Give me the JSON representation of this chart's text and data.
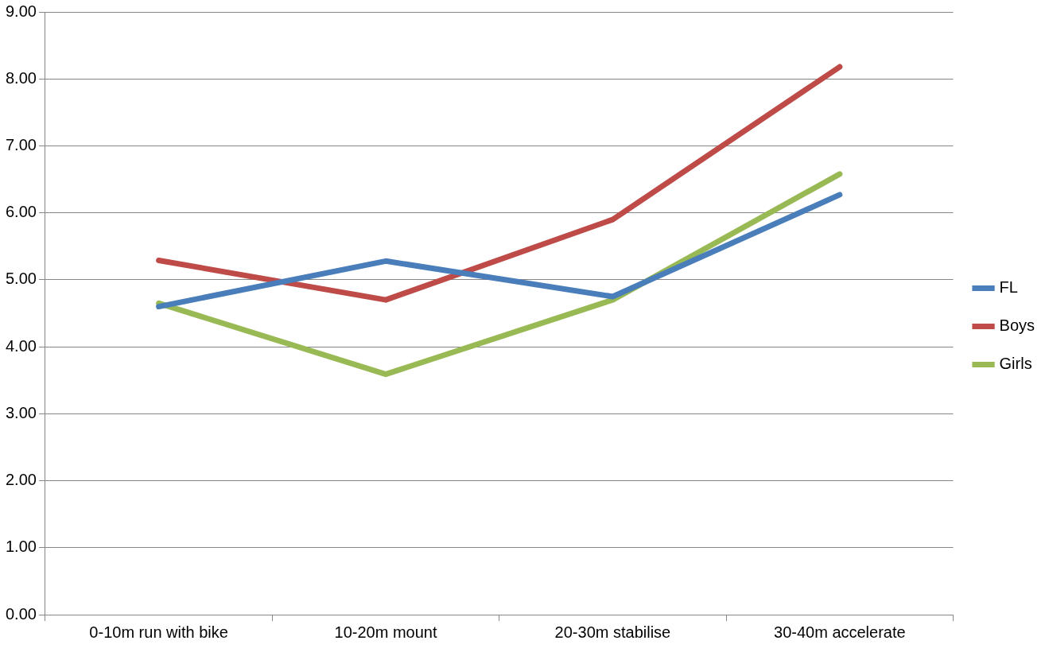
{
  "chart_data": {
    "type": "line",
    "categories": [
      "0-10m run with bike",
      "10-20m mount",
      "20-30m stabilise",
      "30-40m accelerate"
    ],
    "series": [
      {
        "name": "FL",
        "color": "#4a7ebb",
        "values": [
          4.6,
          5.28,
          4.75,
          6.27
        ]
      },
      {
        "name": "Boys",
        "color": "#be4b48",
        "values": [
          5.29,
          4.7,
          5.9,
          8.18
        ]
      },
      {
        "name": "Girls",
        "color": "#98b954",
        "values": [
          4.65,
          3.59,
          4.7,
          6.58
        ]
      }
    ],
    "ylim": [
      0,
      9
    ],
    "yticks": [
      {
        "value": 0,
        "label": "0.00"
      },
      {
        "value": 1,
        "label": "1.00"
      },
      {
        "value": 2,
        "label": "2.00"
      },
      {
        "value": 3,
        "label": "3.00"
      },
      {
        "value": 4,
        "label": "4.00"
      },
      {
        "value": 5,
        "label": "5.00"
      },
      {
        "value": 6,
        "label": "6.00"
      },
      {
        "value": 7,
        "label": "7.00"
      },
      {
        "value": 8,
        "label": "8.00"
      },
      {
        "value": 9,
        "label": "9.00"
      }
    ],
    "grid": "y",
    "legend": "right",
    "marker": "none",
    "line_style": "solid"
  }
}
